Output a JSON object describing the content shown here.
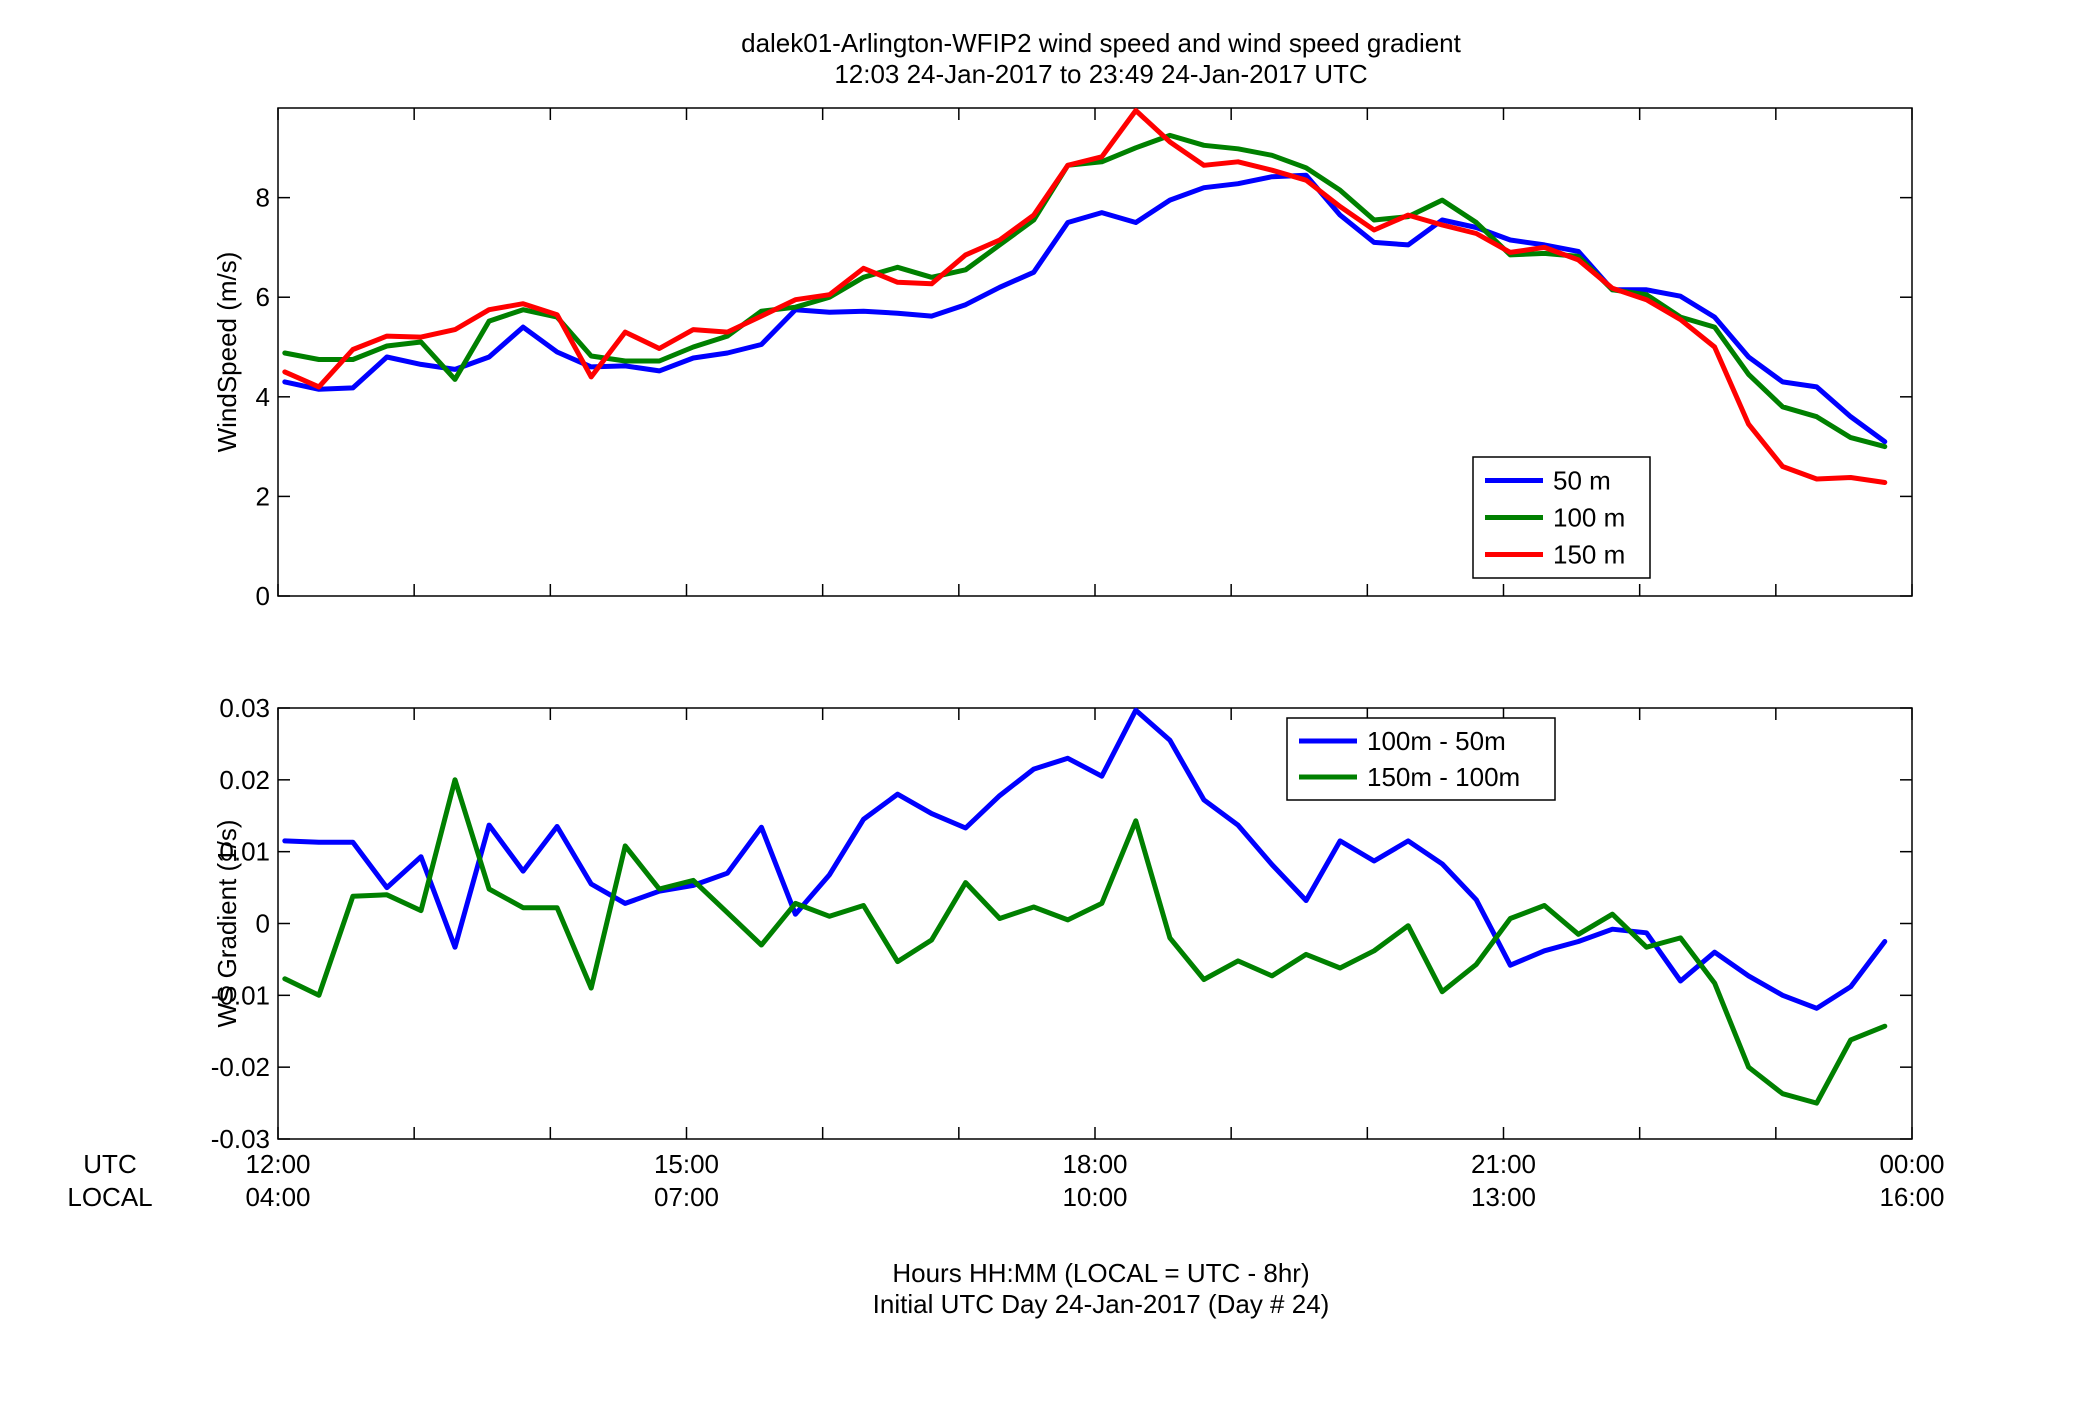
{
  "figure": {
    "title_line1": "dalek01-Arlington-WFIP2  wind speed and wind speed gradient",
    "title_line2": "12:03 24-Jan-2017 to 23:49 24-Jan-2017  UTC",
    "xlabel_line1": "Hours HH:MM  (LOCAL = UTC - 8hr)",
    "xlabel_line2": "Initial UTC Day 24-Jan-2017 (Day # 24)",
    "utc_label": "UTC",
    "local_label": "LOCAL",
    "utc_ticks": [
      "12:00",
      "15:00",
      "18:00",
      "21:00",
      "00:00"
    ],
    "local_ticks": [
      "04:00",
      "07:00",
      "10:00",
      "13:00",
      "16:00"
    ]
  },
  "colors": {
    "blue": "#0000ff",
    "green": "#008000",
    "red": "#ff0000"
  },
  "chart_data": [
    {
      "type": "line",
      "title": "",
      "ylabel": "WindSpeed (m/s)",
      "x_unit": "hours UTC",
      "xlim": [
        12,
        24
      ],
      "ylim": [
        0,
        9.8
      ],
      "yticks": [
        0,
        2,
        4,
        6,
        8
      ],
      "ytick_labels": [
        "0",
        "2",
        "4",
        "6",
        "8"
      ],
      "x_minor_ticks_hours": 1,
      "grid": false,
      "legend_position": "lower-right",
      "x": [
        12.05,
        12.3,
        12.55,
        12.8,
        13.05,
        13.3,
        13.55,
        13.8,
        14.05,
        14.3,
        14.55,
        14.8,
        15.05,
        15.3,
        15.55,
        15.8,
        16.05,
        16.3,
        16.55,
        16.8,
        17.05,
        17.3,
        17.55,
        17.8,
        18.05,
        18.3,
        18.55,
        18.8,
        19.05,
        19.3,
        19.55,
        19.8,
        20.05,
        20.3,
        20.55,
        20.8,
        21.05,
        21.3,
        21.55,
        21.8,
        22.05,
        22.3,
        22.55,
        22.8,
        23.05,
        23.3,
        23.55,
        23.8
      ],
      "series": [
        {
          "name": "50 m",
          "color": "blue",
          "values": [
            4.3,
            4.15,
            4.18,
            4.8,
            4.65,
            4.55,
            4.8,
            5.4,
            4.9,
            4.6,
            4.62,
            4.52,
            4.78,
            4.88,
            5.05,
            5.75,
            5.7,
            5.72,
            5.68,
            5.62,
            5.85,
            6.2,
            6.5,
            7.5,
            7.7,
            7.5,
            7.95,
            8.2,
            8.28,
            8.42,
            8.45,
            7.65,
            7.1,
            7.05,
            7.55,
            7.4,
            7.15,
            7.05,
            6.92,
            6.15,
            6.15,
            6.02,
            5.6,
            4.8,
            4.3,
            4.2,
            3.6,
            3.1
          ]
        },
        {
          "name": "100 m",
          "color": "green",
          "values": [
            4.88,
            4.75,
            4.75,
            5.02,
            5.1,
            4.35,
            5.52,
            5.75,
            5.6,
            4.82,
            4.72,
            4.72,
            5.0,
            5.22,
            5.72,
            5.8,
            6.0,
            6.4,
            6.6,
            6.4,
            6.55,
            7.05,
            7.55,
            8.65,
            8.72,
            9.0,
            9.25,
            9.05,
            8.98,
            8.85,
            8.6,
            8.15,
            7.55,
            7.62,
            7.95,
            7.5,
            6.85,
            6.88,
            6.82,
            6.15,
            6.05,
            5.6,
            5.4,
            4.45,
            3.8,
            3.6,
            3.18,
            3.0
          ]
        },
        {
          "name": "150 m",
          "color": "red",
          "values": [
            4.5,
            4.2,
            4.95,
            5.22,
            5.2,
            5.35,
            5.75,
            5.87,
            5.65,
            4.4,
            5.3,
            4.97,
            5.35,
            5.3,
            5.62,
            5.95,
            6.05,
            6.58,
            6.3,
            6.27,
            6.85,
            7.15,
            7.65,
            8.65,
            8.82,
            9.75,
            9.12,
            8.65,
            8.72,
            8.55,
            8.35,
            7.82,
            7.35,
            7.65,
            7.45,
            7.28,
            6.9,
            7.0,
            6.75,
            6.18,
            5.95,
            5.55,
            5.0,
            3.45,
            2.6,
            2.35,
            2.38,
            2.28
          ]
        }
      ]
    },
    {
      "type": "line",
      "title": "",
      "ylabel": "WS Gradient (1/s)",
      "x_unit": "hours UTC",
      "xlim": [
        12,
        24
      ],
      "ylim": [
        -0.03,
        0.03
      ],
      "yticks": [
        -0.03,
        -0.02,
        -0.01,
        0,
        0.01,
        0.02,
        0.03
      ],
      "ytick_labels": [
        "-0.03",
        "-0.02",
        "-0.01",
        "0",
        "0.01",
        "0.02",
        "0.03"
      ],
      "x_minor_ticks_hours": 1,
      "grid": false,
      "legend_position": "top-right",
      "x": [
        12.05,
        12.3,
        12.55,
        12.8,
        13.05,
        13.3,
        13.55,
        13.8,
        14.05,
        14.3,
        14.55,
        14.8,
        15.05,
        15.3,
        15.55,
        15.8,
        16.05,
        16.3,
        16.55,
        16.8,
        17.05,
        17.3,
        17.55,
        17.8,
        18.05,
        18.3,
        18.55,
        18.8,
        19.05,
        19.3,
        19.55,
        19.8,
        20.05,
        20.3,
        20.55,
        20.8,
        21.05,
        21.3,
        21.55,
        21.8,
        22.05,
        22.3,
        22.55,
        22.8,
        23.05,
        23.3,
        23.55,
        23.8
      ],
      "series": [
        {
          "name": "100m - 50m",
          "color": "blue",
          "values": [
            0.0115,
            0.0113,
            0.0113,
            0.005,
            0.0093,
            -0.0033,
            0.0137,
            0.0073,
            0.0135,
            0.0055,
            0.0028,
            0.0045,
            0.0053,
            0.007,
            0.0134,
            0.0013,
            0.0068,
            0.0145,
            0.018,
            0.0153,
            0.0133,
            0.0178,
            0.0215,
            0.023,
            0.0205,
            0.0297,
            0.0255,
            0.0172,
            0.0137,
            0.0082,
            0.0032,
            0.0115,
            0.0087,
            0.0115,
            0.0083,
            0.0033,
            -0.0058,
            -0.0038,
            -0.0025,
            -0.0008,
            -0.0013,
            -0.008,
            -0.004,
            -0.0073,
            -0.01,
            -0.0118,
            -0.0088,
            -0.0025
          ]
        },
        {
          "name": "150m - 100m",
          "color": "green",
          "values": [
            -0.0077,
            -0.01,
            0.0038,
            0.004,
            0.0018,
            0.02,
            0.0048,
            0.0022,
            0.0022,
            -0.009,
            0.0108,
            0.0048,
            0.006,
            0.0015,
            -0.003,
            0.0028,
            0.001,
            0.0025,
            -0.0053,
            -0.0023,
            0.0057,
            0.0007,
            0.0023,
            0.0005,
            0.0028,
            0.0143,
            -0.002,
            -0.0078,
            -0.0052,
            -0.0073,
            -0.0043,
            -0.0062,
            -0.0038,
            -0.0003,
            -0.0095,
            -0.0057,
            0.0007,
            0.0025,
            -0.0015,
            0.0013,
            -0.0033,
            -0.002,
            -0.0083,
            -0.02,
            -0.0237,
            -0.025,
            -0.0162,
            -0.0143
          ]
        }
      ]
    }
  ]
}
